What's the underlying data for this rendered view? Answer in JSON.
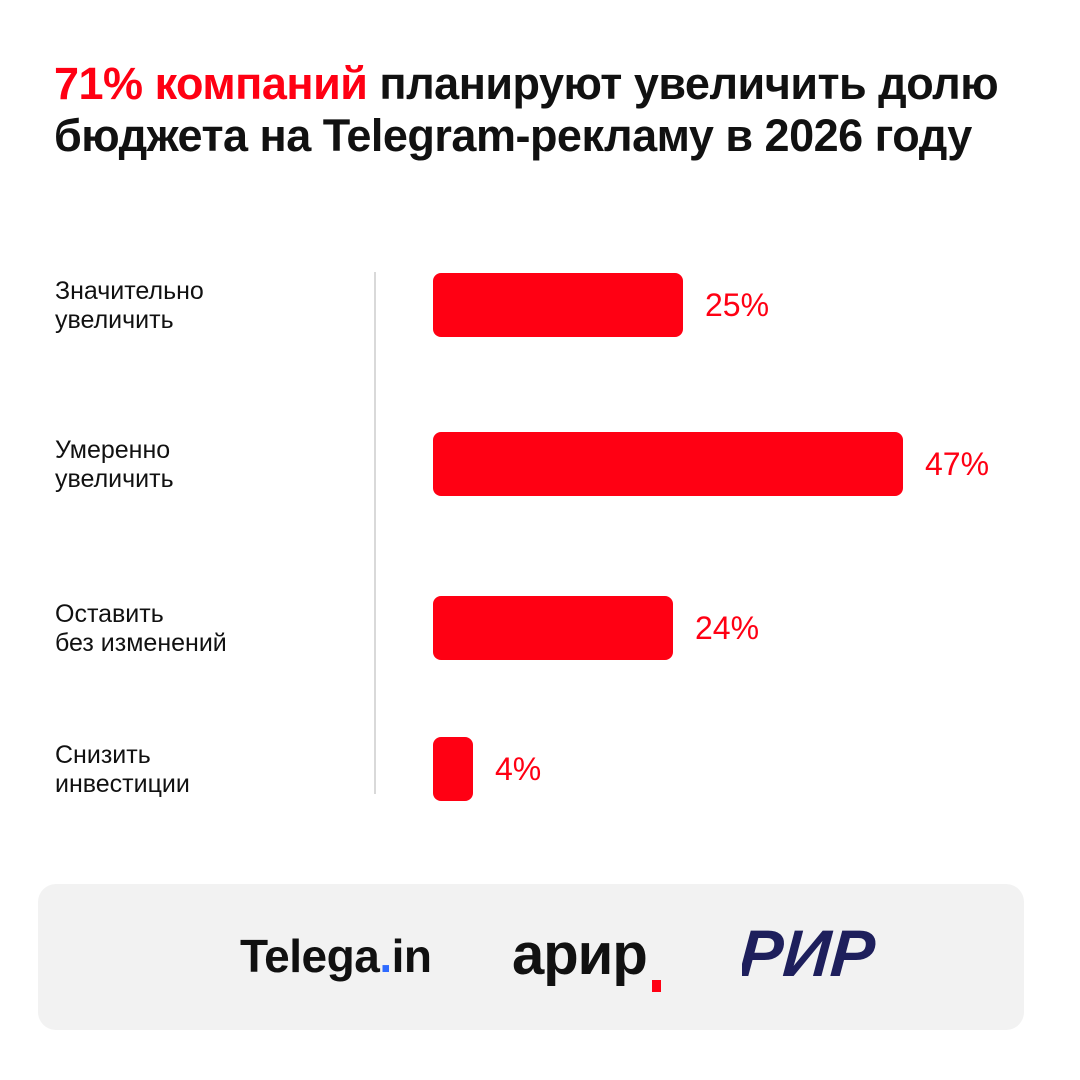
{
  "title": {
    "highlight": "71% компаний",
    "rest": " планируют увеличить долю бюджета на Telegram-рекламу в 2026 году",
    "accent_color": "#ff0013"
  },
  "chart_data": {
    "type": "bar",
    "orientation": "horizontal",
    "categories": [
      "Значительно\nувеличить",
      "Умеренно\nувеличить",
      "Оставить\nбез изменений",
      "Снизить\nинвестиции"
    ],
    "values": [
      25,
      47,
      24,
      4
    ],
    "value_labels": [
      "25%",
      "47%",
      "24%",
      "4%"
    ],
    "unit": "%",
    "xlim": [
      0,
      100
    ],
    "grid": false,
    "bar_color": "#ff0013"
  },
  "footer": {
    "logos": {
      "telega_main": "Telega",
      "telega_dot": ".",
      "telega_tail": "in",
      "arir": "арир",
      "rir": "РИР"
    },
    "colors": {
      "telega_dot": "#2f6bff",
      "arir_mark": "#ff0013",
      "rir": "#1e1f5c"
    }
  }
}
